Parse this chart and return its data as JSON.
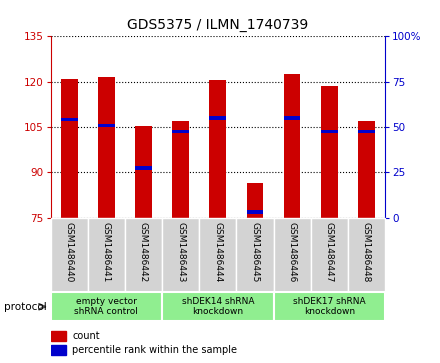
{
  "title": "GDS5375 / ILMN_1740739",
  "samples": [
    "GSM1486440",
    "GSM1486441",
    "GSM1486442",
    "GSM1486443",
    "GSM1486444",
    "GSM1486445",
    "GSM1486446",
    "GSM1486447",
    "GSM1486448"
  ],
  "counts": [
    121.0,
    121.5,
    105.5,
    107.0,
    120.5,
    86.5,
    122.5,
    118.5,
    107.0
  ],
  "percentile_ranks": [
    107.5,
    105.5,
    91.5,
    103.5,
    108.0,
    77.0,
    108.0,
    103.5,
    103.5
  ],
  "ylim_left": [
    75,
    135
  ],
  "ylim_right": [
    0,
    100
  ],
  "yticks_left": [
    75,
    90,
    105,
    120,
    135
  ],
  "yticks_right": [
    0,
    25,
    50,
    75,
    100
  ],
  "bar_color": "#cc0000",
  "percentile_color": "#0000cc",
  "bar_width": 0.45,
  "group_labels": [
    "empty vector\nshRNA control",
    "shDEK14 shRNA\nknockdown",
    "shDEK17 shRNA\nknockdown"
  ],
  "group_starts": [
    0,
    3,
    6
  ],
  "group_ends": [
    3,
    6,
    9
  ],
  "legend_count_label": "count",
  "legend_percentile_label": "percentile rank within the sample",
  "protocol_label": "protocol",
  "bar_background": "#e8e8e8",
  "group_color": "#90ee90",
  "title_fontsize": 10
}
